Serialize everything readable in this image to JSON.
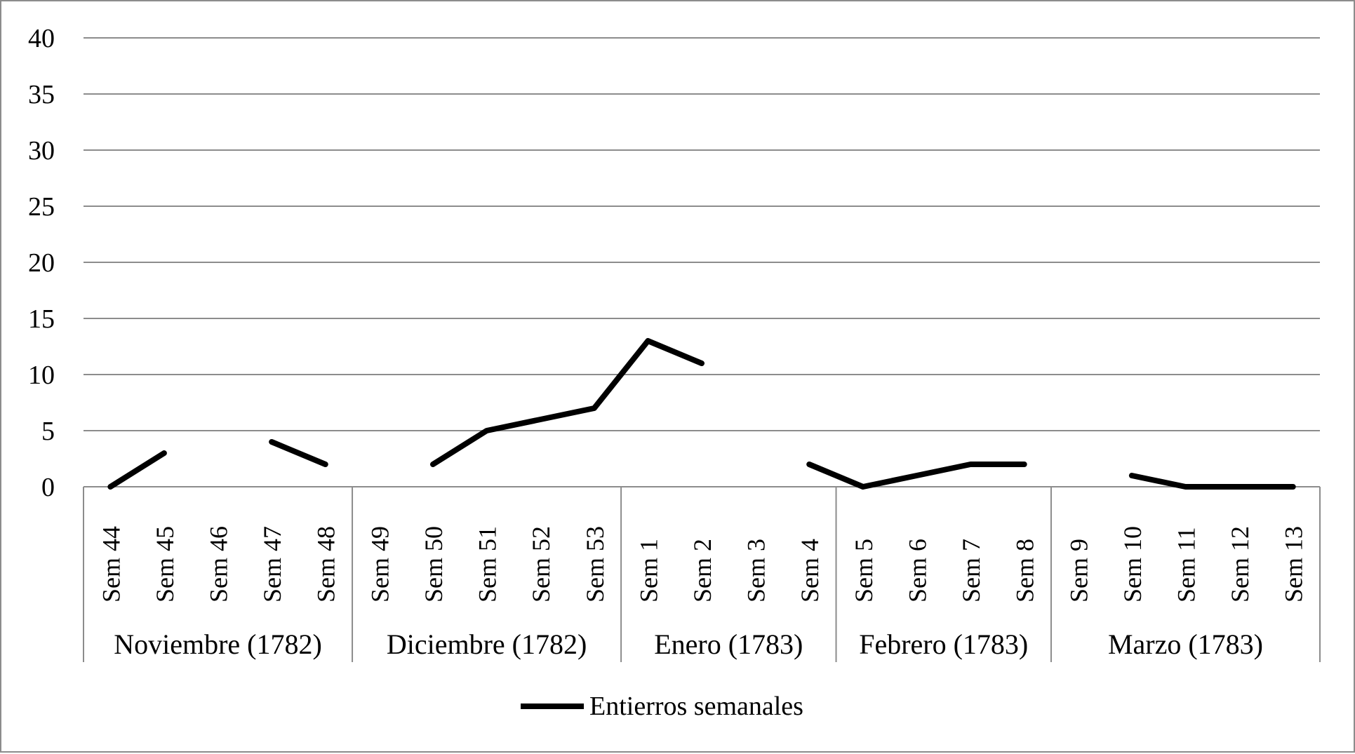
{
  "chart_data": {
    "type": "line",
    "title": "",
    "xlabel": "",
    "ylabel": "",
    "ylim": [
      0,
      40
    ],
    "yticks": [
      "0",
      "5",
      "10",
      "15",
      "20",
      "25",
      "30",
      "35",
      "40"
    ],
    "grid": true,
    "legend_position": "bottom-center",
    "categories": [
      "Sem 44",
      "Sem 45",
      "Sem 46",
      "Sem 47",
      "Sem 48",
      "Sem 49",
      "Sem 50",
      "Sem 51",
      "Sem 52",
      "Sem 53",
      "Sem 1",
      "Sem 2",
      "Sem 3",
      "Sem 4",
      "Sem 5",
      "Sem 6",
      "Sem 7",
      "Sem 8",
      "Sem 9",
      "Sem 10",
      "Sem 11",
      "Sem 12",
      "Sem 13"
    ],
    "groups": [
      {
        "label": "Noviembre (1782)",
        "count": 5
      },
      {
        "label": "Diciembre (1782)",
        "count": 5
      },
      {
        "label": "Enero (1783)",
        "count": 4
      },
      {
        "label": "Febrero (1783)",
        "count": 4
      },
      {
        "label": "Marzo (1783)",
        "count": 5
      }
    ],
    "series": [
      {
        "name": "Entierros semanales",
        "color": "#000000",
        "values": [
          0,
          3,
          null,
          4,
          2,
          null,
          2,
          5,
          6,
          7,
          13,
          11,
          null,
          2,
          0,
          1,
          2,
          2,
          null,
          1,
          0,
          0,
          0
        ]
      }
    ]
  }
}
